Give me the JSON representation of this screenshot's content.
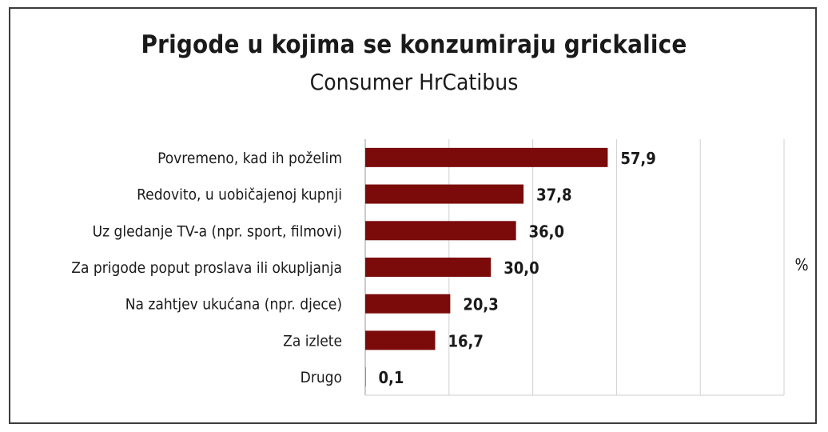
{
  "chart_data": {
    "type": "bar",
    "orientation": "horizontal",
    "title": "Prigode u kojima se konzumiraju grickalice",
    "subtitle": "Consumer HrCatibus",
    "unit": "%",
    "categories": [
      "Povremeno, kad ih poželim",
      "Redovito, u uobičajenoj kupnji",
      "Uz gledanje TV-a (npr. sport, filmovi)",
      "Za prigode poput proslava ili okupljanja",
      "Na zahtjev ukućana (npr. djece)",
      "Za izlete",
      "Drugo"
    ],
    "values": [
      57.9,
      37.8,
      36.0,
      30.0,
      20.3,
      16.7,
      0.1
    ],
    "value_labels": [
      "57,9",
      "37,8",
      "36,0",
      "30,0",
      "20,3",
      "16,7",
      "0,1"
    ],
    "xlim": [
      0,
      100
    ],
    "grid": true,
    "bar_color": "#7b0a0a"
  }
}
